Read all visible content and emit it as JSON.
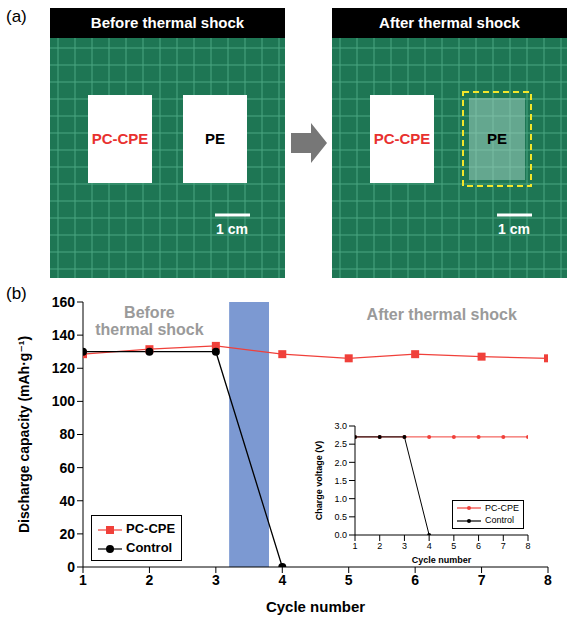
{
  "panel_a": {
    "label": "(a)",
    "photos": [
      {
        "title": "Before thermal shock",
        "samples": [
          "PC-CPE",
          "PE"
        ],
        "scale_bar": "1 cm"
      },
      {
        "title": "After thermal shock",
        "samples": [
          "PC-CPE",
          "PE"
        ],
        "scale_bar": "1 cm",
        "highlighted": "PE"
      }
    ]
  },
  "chart_data": [
    {
      "type": "line",
      "label": "(b)",
      "xlabel": "Cycle number",
      "ylabel": "Discharge capacity (mAh·g⁻¹)",
      "annotations": [
        "Before thermal shock",
        "After thermal shock"
      ],
      "shaded_x_range": [
        3.2,
        3.8
      ],
      "x": [
        1,
        2,
        3,
        4,
        5,
        6,
        7,
        8
      ],
      "xlim": [
        1,
        8
      ],
      "xticks": [
        1,
        2,
        3,
        4,
        5,
        6,
        7,
        8
      ],
      "ylim": [
        0,
        160
      ],
      "yticks": [
        0,
        20,
        40,
        60,
        80,
        100,
        120,
        140,
        160
      ],
      "grid": false,
      "legend": "lower left",
      "series": [
        {
          "name": "PC-CPE",
          "color": "#f0403a",
          "marker": "square",
          "values": [
            128.5,
            131.5,
            133.5,
            128.5,
            126,
            128.5,
            127,
            126
          ]
        },
        {
          "name": "Control",
          "color": "#000000",
          "marker": "circle",
          "values": [
            130,
            130,
            130,
            0,
            null,
            null,
            null,
            null
          ]
        }
      ]
    },
    {
      "type": "line",
      "xlabel": "Cycle number",
      "ylabel": "Charge voltage (V)",
      "x": [
        1,
        2,
        3,
        4,
        5,
        6,
        7,
        8
      ],
      "xlim": [
        1,
        8
      ],
      "xticks": [
        1,
        2,
        3,
        4,
        5,
        6,
        7,
        8
      ],
      "ylim": [
        0,
        3
      ],
      "yticks": [
        {
          "value": 0,
          "label": "0.0"
        },
        {
          "value": 0.5,
          "label": "0.5"
        },
        {
          "value": 1,
          "label": "1.0"
        },
        {
          "value": 1.5,
          "label": "1.5"
        },
        {
          "value": 2,
          "label": "2.0"
        },
        {
          "value": 2.5,
          "label": "2.5"
        },
        {
          "value": 3,
          "label": "3.0"
        }
      ],
      "grid": false,
      "legend": "lower right",
      "series": [
        {
          "name": "PC-CPE",
          "color": "#f0403a",
          "marker": "circle",
          "values": [
            2.7,
            2.7,
            2.7,
            2.7,
            2.7,
            2.7,
            2.7,
            2.7
          ]
        },
        {
          "name": "Control",
          "color": "#000000",
          "marker": "circle",
          "values": [
            2.7,
            2.7,
            2.7,
            0,
            null,
            null,
            null,
            null
          ]
        }
      ]
    }
  ]
}
